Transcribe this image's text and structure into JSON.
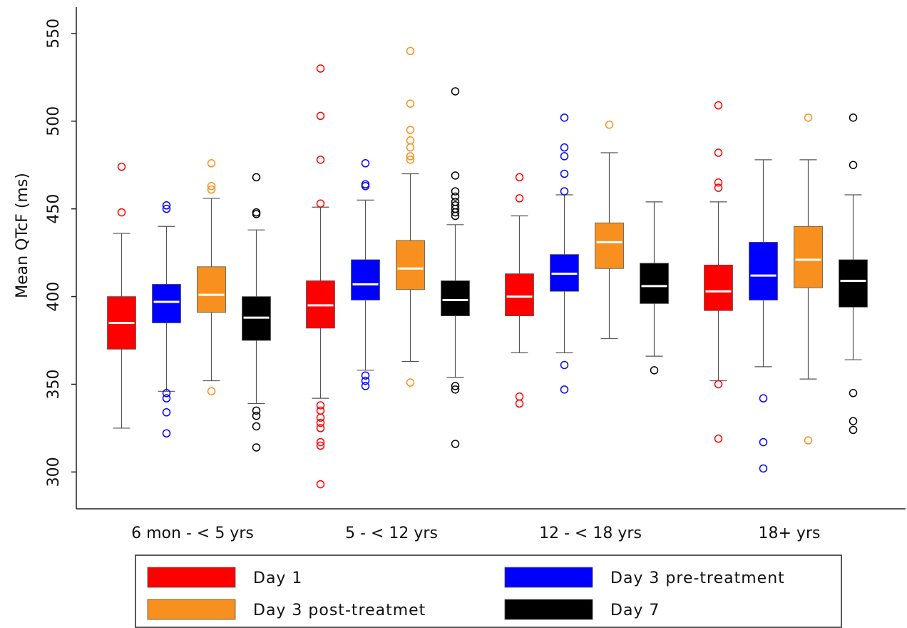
{
  "chart_data": {
    "type": "box",
    "y_label": "Mean QTcF (ms)",
    "categories": [
      "6 mon - < 5 yrs",
      "5 - < 12 yrs",
      "12 - < 18 yrs",
      "18+ yrs"
    ],
    "ylim": [
      279,
      565
    ],
    "yticks": [
      300,
      350,
      400,
      450,
      500,
      550
    ],
    "series": [
      {
        "name": "Day 1",
        "color": "#ff0000",
        "values": [
          {
            "min": 325,
            "q1": 370,
            "median": 385,
            "q3": 400,
            "max": 436,
            "outliers": [
              474,
              448
            ]
          },
          {
            "min": 342,
            "q1": 382,
            "median": 395,
            "q3": 409,
            "max": 451,
            "outliers": [
              530,
              503,
              478,
              453,
              338,
              335,
              331,
              328,
              325,
              317,
              315,
              293
            ]
          },
          {
            "min": 368,
            "q1": 389,
            "median": 400,
            "q3": 413,
            "max": 446,
            "outliers": [
              468,
              456,
              343,
              339
            ]
          },
          {
            "min": 352,
            "q1": 392,
            "median": 403,
            "q3": 418,
            "max": 454,
            "outliers": [
              509,
              482,
              465,
              462,
              350,
              319
            ]
          }
        ]
      },
      {
        "name": "Day 3 pre-treatment",
        "color": "#0000ff",
        "values": [
          {
            "min": 346,
            "q1": 385,
            "median": 397,
            "q3": 407,
            "max": 440,
            "outliers": [
              452,
              450,
              345,
              342,
              334,
              322
            ]
          },
          {
            "min": 358,
            "q1": 398,
            "median": 407,
            "q3": 421,
            "max": 455,
            "outliers": [
              476,
              464,
              463,
              355,
              352,
              349
            ]
          },
          {
            "min": 368,
            "q1": 403,
            "median": 413,
            "q3": 424,
            "max": 458,
            "outliers": [
              502,
              485,
              480,
              470,
              460,
              361,
              347
            ]
          },
          {
            "min": 360,
            "q1": 398,
            "median": 412,
            "q3": 431,
            "max": 478,
            "outliers": [
              342,
              317,
              302
            ]
          }
        ]
      },
      {
        "name": "Day 3 post-treatmet",
        "color": "#f7901e",
        "values": [
          {
            "min": 352,
            "q1": 391,
            "median": 401,
            "q3": 417,
            "max": 456,
            "outliers": [
              476,
              463,
              461,
              346
            ]
          },
          {
            "min": 363,
            "q1": 404,
            "median": 416,
            "q3": 432,
            "max": 470,
            "outliers": [
              540,
              510,
              495,
              489,
              485,
              480,
              478,
              351
            ]
          },
          {
            "min": 376,
            "q1": 416,
            "median": 431,
            "q3": 442,
            "max": 482,
            "outliers": [
              498
            ]
          },
          {
            "min": 353,
            "q1": 405,
            "median": 421,
            "q3": 440,
            "max": 478,
            "outliers": [
              502,
              318
            ]
          }
        ]
      },
      {
        "name": "Day 7",
        "color": "#000000",
        "values": [
          {
            "min": 339,
            "q1": 375,
            "median": 388,
            "q3": 400,
            "max": 438,
            "outliers": [
              468,
              448,
              447,
              335,
              332,
              326,
              314
            ]
          },
          {
            "min": 354,
            "q1": 389,
            "median": 398,
            "q3": 409,
            "max": 441,
            "outliers": [
              517,
              469,
              460,
              457,
              454,
              452,
              450,
              448,
              446,
              349,
              347,
              316
            ]
          },
          {
            "min": 366,
            "q1": 396,
            "median": 406,
            "q3": 419,
            "max": 454,
            "outliers": [
              358
            ]
          },
          {
            "min": 364,
            "q1": 394,
            "median": 409,
            "q3": 421,
            "max": 458,
            "outliers": [
              502,
              475,
              345,
              329,
              324
            ]
          }
        ]
      }
    ]
  }
}
